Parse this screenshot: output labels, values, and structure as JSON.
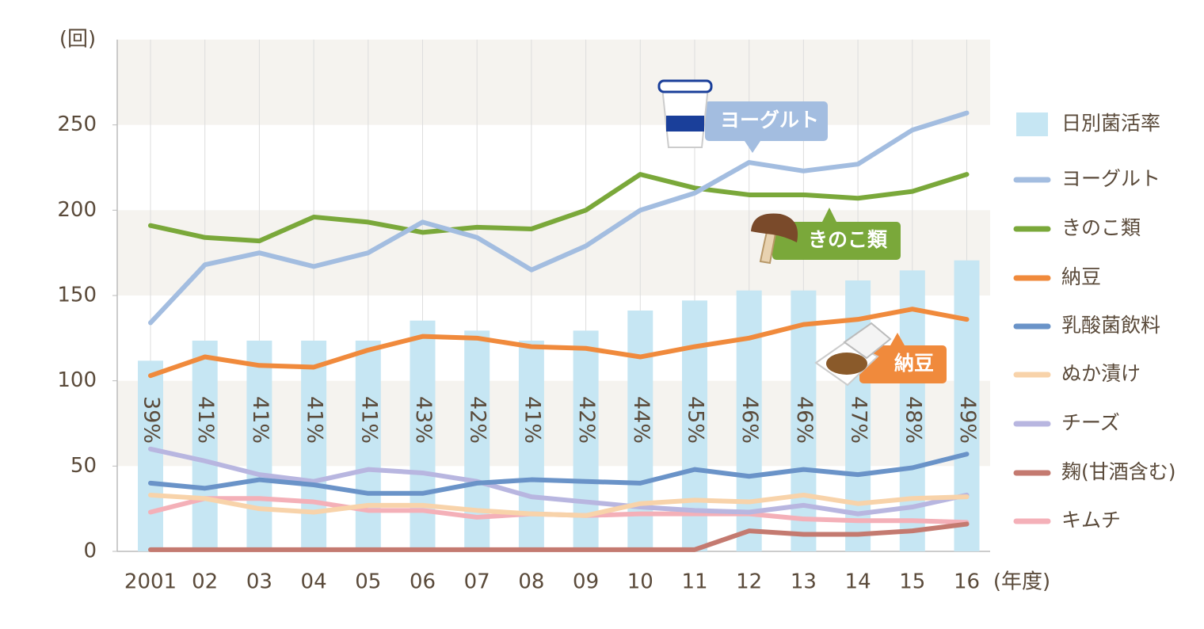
{
  "chart_data": {
    "type": "bar-line",
    "y_label": "(回)",
    "x_label": "(年度)",
    "categories": [
      "2001",
      "02",
      "03",
      "04",
      "05",
      "06",
      "07",
      "08",
      "09",
      "10",
      "11",
      "12",
      "13",
      "14",
      "15",
      "16"
    ],
    "ylim": [
      0,
      300
    ],
    "yticks": [
      0,
      50,
      100,
      150,
      200,
      250
    ],
    "y2lim": [
      20,
      71
    ],
    "series": [
      {
        "name": "日別菌活率",
        "type": "bar",
        "axis": "y2",
        "color": "#c6e6f3",
        "values": [
          39,
          41,
          41,
          41,
          41,
          43,
          42,
          41,
          42,
          44,
          45,
          46,
          46,
          47,
          48,
          49
        ],
        "value_labels": [
          "39%",
          "41%",
          "41%",
          "41%",
          "41%",
          "43%",
          "42%",
          "41%",
          "42%",
          "44%",
          "45%",
          "46%",
          "46%",
          "47%",
          "48%",
          "49%"
        ]
      },
      {
        "name": "ヨーグルト",
        "type": "line",
        "color": "#a3bde0",
        "values": [
          134,
          168,
          175,
          167,
          175,
          193,
          184,
          165,
          179,
          200,
          210,
          228,
          223,
          227,
          247,
          257
        ]
      },
      {
        "name": "きのこ類",
        "type": "line",
        "color": "#7aa83a",
        "values": [
          191,
          184,
          182,
          196,
          193,
          187,
          190,
          189,
          200,
          221,
          213,
          209,
          209,
          207,
          211,
          221
        ]
      },
      {
        "name": "納豆",
        "type": "line",
        "color": "#f08a3c",
        "values": [
          103,
          114,
          109,
          108,
          118,
          126,
          125,
          120,
          119,
          114,
          120,
          125,
          133,
          136,
          142,
          136
        ]
      },
      {
        "name": "乳酸菌飲料",
        "type": "line",
        "color": "#6a93c8",
        "values": [
          40,
          37,
          42,
          39,
          34,
          34,
          40,
          42,
          41,
          40,
          48,
          44,
          48,
          45,
          49,
          57
        ]
      },
      {
        "name": "ぬか漬け",
        "type": "line",
        "color": "#f8d3aa",
        "values": [
          33,
          31,
          25,
          23,
          27,
          27,
          24,
          22,
          21,
          28,
          30,
          29,
          33,
          28,
          31,
          32
        ]
      },
      {
        "name": "チーズ",
        "type": "line",
        "color": "#b8b6e0",
        "values": [
          60,
          53,
          45,
          41,
          48,
          46,
          41,
          32,
          29,
          26,
          24,
          23,
          27,
          22,
          26,
          33
        ]
      },
      {
        "name": "麹(甘酒含む)",
        "type": "line",
        "color": "#c47a70",
        "values": [
          1,
          1,
          1,
          1,
          1,
          1,
          1,
          1,
          1,
          1,
          1,
          12,
          10,
          10,
          12,
          16
        ]
      },
      {
        "name": "キムチ",
        "type": "line",
        "color": "#f4b0b8",
        "values": [
          23,
          31,
          31,
          29,
          24,
          24,
          20,
          22,
          21,
          22,
          22,
          22,
          19,
          18,
          18,
          17
        ]
      }
    ],
    "annotations": [
      "ヨーグルト",
      "きのこ類",
      "納豆"
    ]
  }
}
